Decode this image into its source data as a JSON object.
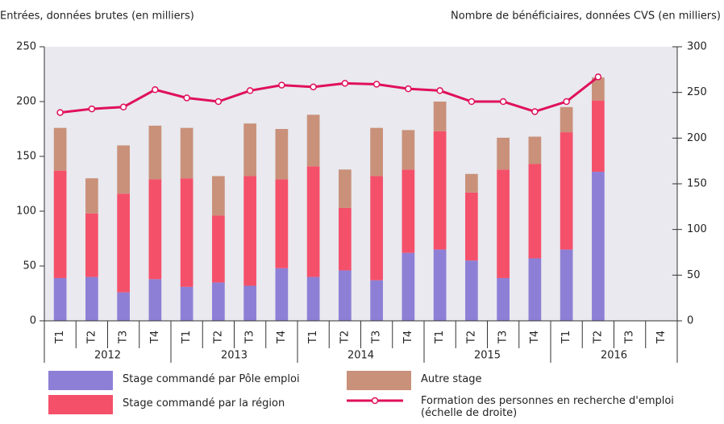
{
  "chart_data": {
    "type": "bar",
    "y_label": "Entrées, données brutes (en milliers)",
    "y2_label": "Nombre de bénéficiaires, données CVS (en milliers)",
    "categories": [
      "T1",
      "T2",
      "T3",
      "T4",
      "T1",
      "T2",
      "T3",
      "T4",
      "T1",
      "T2",
      "T3",
      "T4",
      "T1",
      "T2",
      "T3",
      "T4",
      "T1",
      "T2",
      "T3",
      "T4"
    ],
    "years": [
      "2012",
      "2013",
      "2014",
      "2015",
      "2016"
    ],
    "stacked": true,
    "series": [
      {
        "name": "Stage commandé par Pôle emploi",
        "color": "#8e7fd6",
        "values": [
          39,
          40,
          26,
          38,
          31,
          35,
          32,
          48,
          40,
          46,
          37,
          62,
          65,
          55,
          39,
          57,
          65,
          136,
          null,
          null
        ]
      },
      {
        "name": "Stage commandé par la région",
        "color": "#f5506a",
        "values": [
          98,
          58,
          90,
          91,
          99,
          61,
          100,
          81,
          101,
          57,
          95,
          76,
          108,
          62,
          99,
          86,
          107,
          65,
          null,
          null
        ]
      },
      {
        "name": "Autre stage",
        "color": "#c9917a",
        "values": [
          39,
          32,
          44,
          49,
          46,
          36,
          48,
          46,
          47,
          35,
          44,
          36,
          27,
          17,
          29,
          25,
          23,
          21,
          null,
          null
        ]
      },
      {
        "name": "Formation des personnes en recherche d'emploi (échelle de droite)",
        "color": "#e0105a",
        "type": "line",
        "axis": "y2",
        "values": [
          228,
          232,
          234,
          253,
          244,
          240,
          252,
          258,
          256,
          260,
          259,
          254,
          252,
          240,
          240,
          229,
          240,
          267,
          null,
          null
        ]
      }
    ],
    "ylim": [
      0,
      250
    ],
    "yticks": [
      0,
      50,
      100,
      150,
      200,
      250
    ],
    "y2lim": [
      0,
      300
    ],
    "y2ticks": [
      0,
      50,
      100,
      150,
      200,
      250,
      300
    ],
    "grid": false
  }
}
